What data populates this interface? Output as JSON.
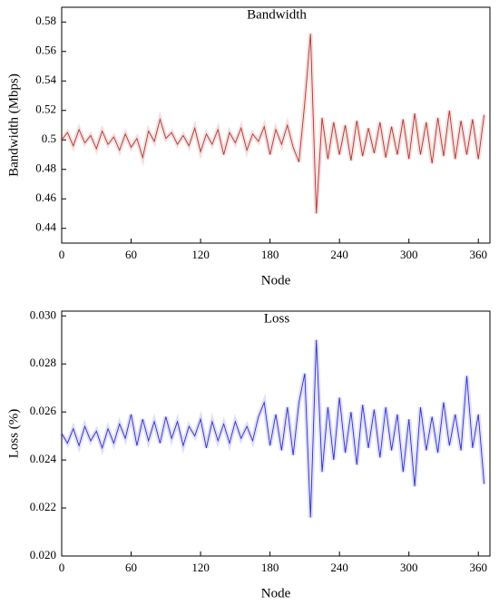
{
  "chart_data": [
    {
      "type": "line",
      "title": "Bandwidth",
      "xlabel": "Node",
      "ylabel": "Bandwidth (Mbps)",
      "color": "#b0352f",
      "x": [
        0,
        5,
        10,
        15,
        20,
        25,
        30,
        35,
        40,
        45,
        50,
        55,
        60,
        65,
        70,
        75,
        80,
        85,
        90,
        95,
        100,
        105,
        110,
        115,
        120,
        125,
        130,
        135,
        140,
        145,
        150,
        155,
        160,
        165,
        170,
        175,
        180,
        185,
        190,
        195,
        200,
        205,
        210,
        215,
        220,
        225,
        230,
        235,
        240,
        245,
        250,
        255,
        260,
        265,
        270,
        275,
        280,
        285,
        290,
        295,
        300,
        305,
        310,
        315,
        320,
        325,
        330,
        335,
        340,
        345,
        350,
        355,
        360,
        365
      ],
      "values": [
        0.5,
        0.505,
        0.496,
        0.507,
        0.498,
        0.503,
        0.494,
        0.506,
        0.497,
        0.502,
        0.493,
        0.504,
        0.495,
        0.501,
        0.488,
        0.506,
        0.499,
        0.514,
        0.501,
        0.505,
        0.497,
        0.503,
        0.496,
        0.508,
        0.492,
        0.504,
        0.497,
        0.507,
        0.49,
        0.505,
        0.498,
        0.508,
        0.493,
        0.504,
        0.499,
        0.509,
        0.49,
        0.507,
        0.497,
        0.51,
        0.495,
        0.485,
        0.525,
        0.572,
        0.45,
        0.515,
        0.487,
        0.512,
        0.49,
        0.51,
        0.486,
        0.513,
        0.489,
        0.508,
        0.491,
        0.512,
        0.488,
        0.509,
        0.49,
        0.514,
        0.487,
        0.518,
        0.49,
        0.512,
        0.484,
        0.515,
        0.489,
        0.52,
        0.487,
        0.513,
        0.49,
        0.514,
        0.487,
        0.517
      ],
      "xlim": [
        0,
        370
      ],
      "xticks": [
        0,
        60,
        120,
        180,
        240,
        300,
        360
      ],
      "ylim": [
        0.43,
        0.59
      ],
      "yticks": [
        0.44,
        0.46,
        0.48,
        0.5,
        0.52,
        0.54,
        0.56,
        0.58
      ]
    },
    {
      "type": "line",
      "title": "Loss",
      "xlabel": "Node",
      "ylabel": "Loss (%)",
      "color": "#2f2fc8",
      "x": [
        0,
        5,
        10,
        15,
        20,
        25,
        30,
        35,
        40,
        45,
        50,
        55,
        60,
        65,
        70,
        75,
        80,
        85,
        90,
        95,
        100,
        105,
        110,
        115,
        120,
        125,
        130,
        135,
        140,
        145,
        150,
        155,
        160,
        165,
        170,
        175,
        180,
        185,
        190,
        195,
        200,
        205,
        210,
        215,
        220,
        225,
        230,
        235,
        240,
        245,
        250,
        255,
        260,
        265,
        270,
        275,
        280,
        285,
        290,
        295,
        300,
        305,
        310,
        315,
        320,
        325,
        330,
        335,
        340,
        345,
        350,
        355,
        360,
        365
      ],
      "values": [
        0.0251,
        0.0247,
        0.0253,
        0.0246,
        0.0254,
        0.0248,
        0.0252,
        0.0245,
        0.0253,
        0.0247,
        0.0255,
        0.0249,
        0.0259,
        0.0246,
        0.0257,
        0.0248,
        0.0256,
        0.0247,
        0.0258,
        0.0249,
        0.0256,
        0.0246,
        0.0254,
        0.025,
        0.0257,
        0.0245,
        0.0256,
        0.0248,
        0.0255,
        0.0247,
        0.0256,
        0.0249,
        0.0254,
        0.0248,
        0.0258,
        0.0264,
        0.0246,
        0.0259,
        0.0244,
        0.0262,
        0.0242,
        0.0264,
        0.0276,
        0.0216,
        0.029,
        0.0235,
        0.0262,
        0.024,
        0.0266,
        0.0243,
        0.026,
        0.0238,
        0.0263,
        0.0245,
        0.0261,
        0.0241,
        0.0262,
        0.0244,
        0.0259,
        0.0235,
        0.0257,
        0.0229,
        0.0262,
        0.0244,
        0.0258,
        0.0243,
        0.0264,
        0.0246,
        0.0259,
        0.0244,
        0.0275,
        0.0245,
        0.0259,
        0.023
      ],
      "xlim": [
        0,
        370
      ],
      "xticks": [
        0,
        60,
        120,
        180,
        240,
        300,
        360
      ],
      "ylim": [
        0.02,
        0.0302
      ],
      "yticks": [
        {
          "value": 0.02,
          "label": "0.020"
        },
        0.022,
        0.024,
        0.026,
        0.028,
        {
          "value": 0.03,
          "label": "0.030"
        }
      ]
    }
  ]
}
